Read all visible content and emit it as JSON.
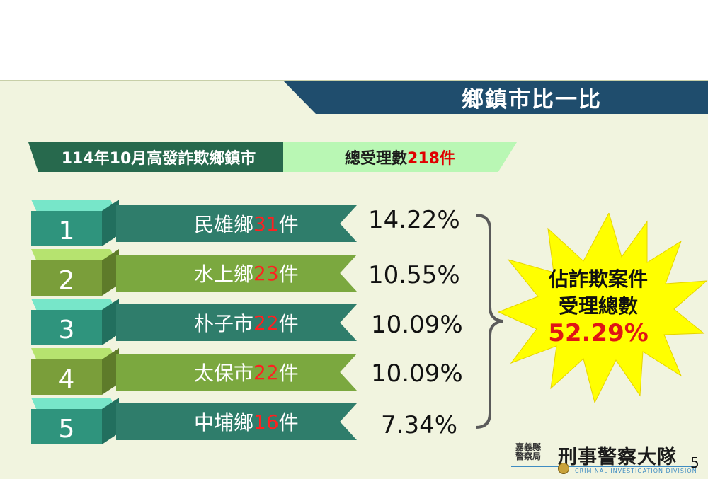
{
  "slide": {
    "title": "鄉鎮市比一比",
    "header_left": "114年10月高發詐欺鄉鎮市",
    "header_right_prefix": "總受理數",
    "header_right_value": "218件",
    "colors": {
      "dark_green": "#27694d",
      "light_green": "#b9f7b4",
      "banner": "#1f4d6d",
      "highlight_red": "#ff0000",
      "star_yellow": "#ffff00"
    }
  },
  "ranks": [
    {
      "rank": "1",
      "name": "民雄鄉",
      "count": "31",
      "unit": "件",
      "percent": "14.22%",
      "style": "teal"
    },
    {
      "rank": "2",
      "name": "水上鄉",
      "count": "23",
      "unit": "件",
      "percent": "10.55%",
      "style": "olive"
    },
    {
      "rank": "3",
      "name": "朴子市",
      "count": "22",
      "unit": "件",
      "percent": "10.09%",
      "style": "teal"
    },
    {
      "rank": "4",
      "name": "太保市",
      "count": "22",
      "unit": "件",
      "percent": "10.09%",
      "style": "olive"
    },
    {
      "rank": "5",
      "name": "中埔鄉",
      "count": "16",
      "unit": "件",
      "percent": "7.34%",
      "style": "teal"
    }
  ],
  "summary": {
    "line1": "佔詐欺案件",
    "line2": "受理總數",
    "percent": "52.29%"
  },
  "footer": {
    "org_small_1": "嘉義縣",
    "org_small_2": "警察局",
    "org_big": "刑事警察大隊",
    "org_eng": "CRIMINAL INVESTIGATION DIVISION",
    "page_number": "5"
  }
}
